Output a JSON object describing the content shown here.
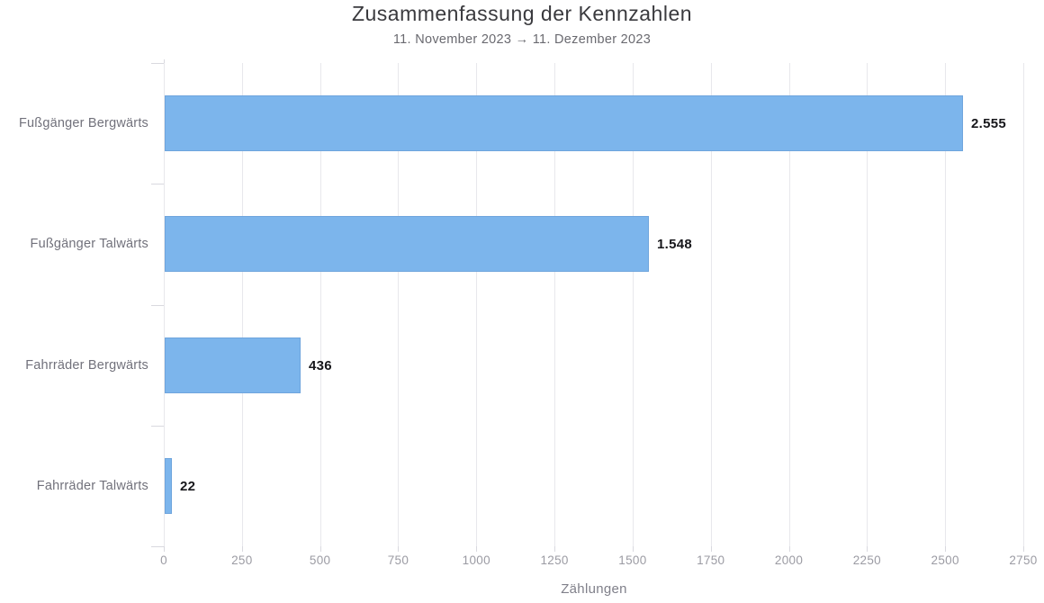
{
  "title": "Zusammenfassung der Kennzahlen",
  "subtitle": "11. November 2023 → 11. Dezember 2023",
  "chart_data": {
    "type": "bar",
    "orientation": "horizontal",
    "title": "Zusammenfassung der Kennzahlen",
    "subtitle": "11. November 2023 → 11. Dezember 2023",
    "categories": [
      "Fußgänger Bergwärts",
      "Fußgänger Talwärts",
      "Fahrräder Bergwärts",
      "Fahrräder Talwärts"
    ],
    "values": [
      2555,
      1548,
      436,
      22
    ],
    "value_labels": [
      "2.555",
      "1.548",
      "436",
      "22"
    ],
    "xlabel": "Zählungen",
    "ylabel": "",
    "xlim": [
      0,
      2750
    ],
    "xticks": [
      0,
      250,
      500,
      750,
      1000,
      1250,
      1500,
      1750,
      2000,
      2250,
      2500,
      2750
    ],
    "grid": true,
    "legend": false,
    "bar_color": "#7cb5ec",
    "colors": {
      "bar": "#7cb5ec",
      "grid": "#e8e8ec",
      "axis": "#d9d9df",
      "title_text": "#3a3a3e",
      "subtitle_text": "#6a6a70",
      "category_text": "#71717b",
      "tick_text": "#9b9ba3",
      "value_text": "#17171b",
      "background": "#ffffff"
    }
  }
}
